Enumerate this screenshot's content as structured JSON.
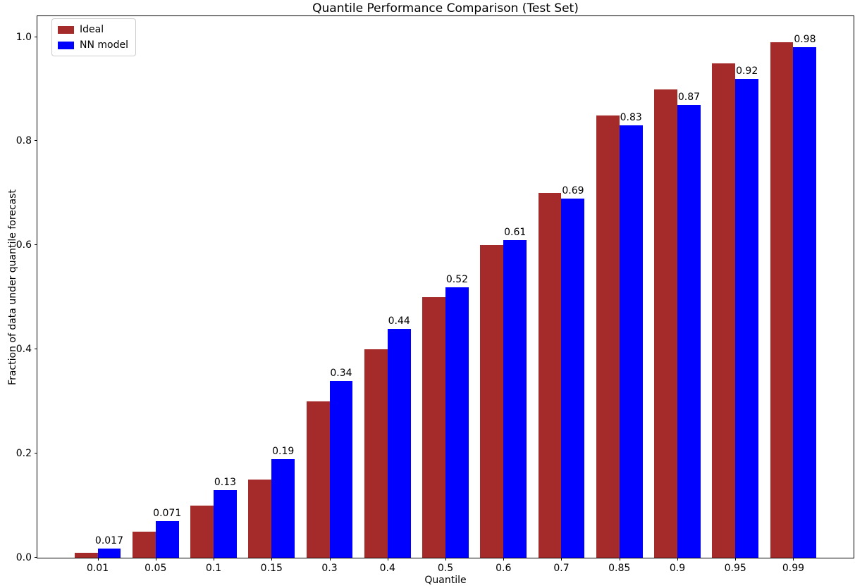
{
  "chart_data": {
    "type": "bar",
    "title": "Quantile Performance Comparison (Test Set)",
    "xlabel": "Quantile",
    "ylabel": "Fraction of data under quantile forecast",
    "categories": [
      "0.01",
      "0.05",
      "0.1",
      "0.15",
      "0.3",
      "0.4",
      "0.5",
      "0.6",
      "0.7",
      "0.85",
      "0.9",
      "0.95",
      "0.99"
    ],
    "series": [
      {
        "name": "Ideal",
        "color": "#A52A2A",
        "values": [
          0.01,
          0.05,
          0.1,
          0.15,
          0.3,
          0.4,
          0.5,
          0.6,
          0.7,
          0.85,
          0.9,
          0.95,
          0.99
        ]
      },
      {
        "name": "NN model",
        "color": "#0000FF",
        "values": [
          0.017,
          0.071,
          0.13,
          0.19,
          0.34,
          0.44,
          0.52,
          0.61,
          0.69,
          0.83,
          0.87,
          0.92,
          0.98
        ],
        "bar_labels": [
          "0.017",
          "0.071",
          "0.13",
          "0.19",
          "0.34",
          "0.44",
          "0.52",
          "0.61",
          "0.69",
          "0.83",
          "0.87",
          "0.92",
          "0.98"
        ]
      }
    ],
    "yticks": [
      "0.0",
      "0.2",
      "0.4",
      "0.6",
      "0.8",
      "1.0"
    ],
    "ylim": [
      0,
      1.04
    ],
    "xlim": [
      -1.04,
      13.04
    ],
    "bar_width_units": 0.4,
    "grid": false,
    "legend_position": "upper left",
    "text_color": "#000000",
    "spine_color": "#000000"
  }
}
